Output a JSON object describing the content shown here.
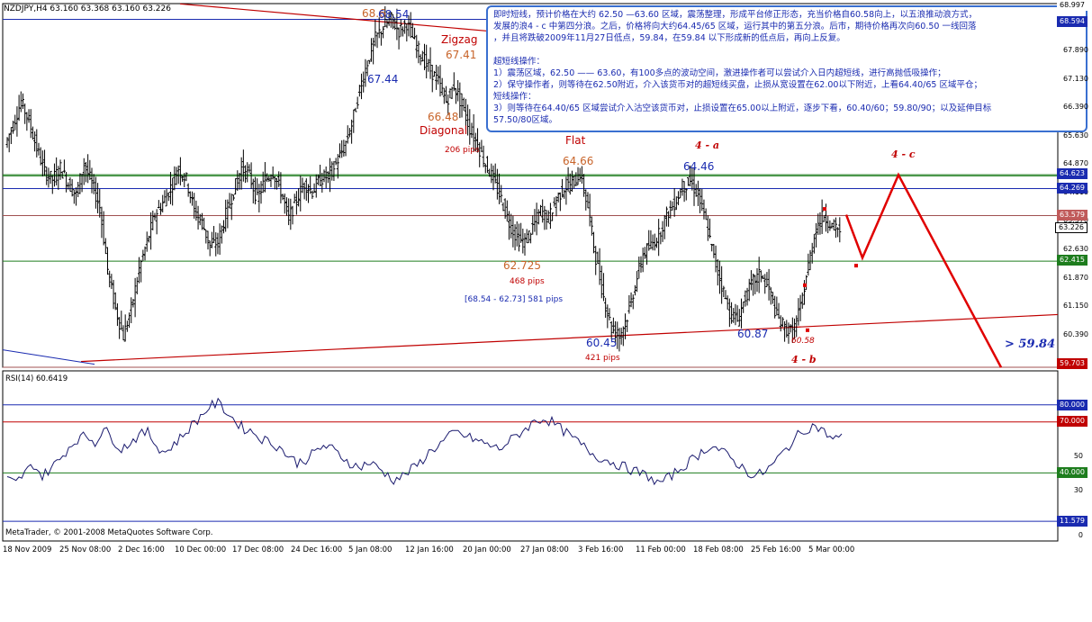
{
  "header": {
    "symbol_line": "NZDJPY,H4  63.160 63.368 63.160 63.226"
  },
  "annotation_box": {
    "lines": [
      "即时短线，预计价格在大约 62.50 —63.60 区域，震荡整理，形成平台修正形态，充当价格自60.58向上，以五浪推动浪方式，",
      "发展的浪4 - c 中第四分浪。之后，价格将向大约64.45/65 区域，运行其中的第五分浪。后市，期待价格再次向60.50 一线回落",
      "，并且将跌破2009年11月27日低点，59.84，在59.84 以下形成新的低点后，再向上反复。",
      "",
      "超短线操作：",
      "1）震荡区域，62.50 —— 63.60，有100多点的波动空间，激进操作者可以尝试介入日内超短线，进行高抛低吸操作；",
      "2）保守操作者，则等待在62.50附近，介入该货币对的超短线买盘，止损从宽设置在62.00以下附近，上看64.40/65 区域平仓；",
      "短线操作：",
      "3）则等待在64.40/65 区域尝试介入沽空该货币对，止损设置在65.00以上附近，逐步下看，60.40/60；59.80/90；以及延伸目标",
      "57.50/80区域。"
    ]
  },
  "wave_labels": {
    "top_a": "68.6",
    "top_b": "68.54",
    "zigzag": "Zigzag",
    "v6741": "67.41",
    "v6744": "67.44",
    "v6648": "66.48",
    "diagonal": "Diagonal",
    "pips206": "206   pips",
    "flat": "Flat",
    "v6466": "64.66",
    "v6446": "64.46",
    "w4a": "4 - a",
    "w4c": "4 - c",
    "v62725": "62.725",
    "pips468": "468    pips",
    "range": "[68.54 - 62.73]    581    pips",
    "v6045": "60.45",
    "pips421": "421   pips",
    "v6087": "60.87",
    "v6058": "60.58",
    "w4b": "4 - b",
    "target": "> 59.84"
  },
  "price_axis": {
    "ticks": [
      "67.890",
      "67.130",
      "66.390",
      "65.630",
      "64.870",
      "64.110",
      "63.370",
      "62.630",
      "61.870",
      "61.150",
      "60.390"
    ],
    "tags": [
      {
        "text": "68.997",
        "color": "#ffffff",
        "bg": "#ffffff",
        "fg": "#000000"
      },
      {
        "text": "68.594",
        "color": "#1a2bb0",
        "bg": "#1a2bb0",
        "fg": "#ffffff"
      },
      {
        "text": "64.623",
        "color": "#1a2bb0",
        "bg": "#1a2bb0",
        "fg": "#ffffff"
      },
      {
        "text": "64.269",
        "color": "#1a2bb0",
        "bg": "#1a2bb0",
        "fg": "#ffffff"
      },
      {
        "text": "63.579",
        "color": "#b05050",
        "bg": "#c05a5a",
        "fg": "#ffffff"
      },
      {
        "text": "63.226",
        "color": "#000000",
        "bg": "#ffffff",
        "fg": "#000000"
      },
      {
        "text": "62.415",
        "color": "#1e7d1e",
        "bg": "#1e7d1e",
        "fg": "#ffffff"
      },
      {
        "text": "59.703",
        "color": "#c00000",
        "bg": "#c00000",
        "fg": "#ffffff"
      }
    ]
  },
  "rsi_panel": {
    "label": "RSI(14) 60.6419",
    "ticks": [
      "50",
      "30",
      "0"
    ],
    "tags": [
      {
        "text": "80.000",
        "bg": "#1a2bb0"
      },
      {
        "text": "70.000",
        "bg": "#c00000"
      },
      {
        "text": "40.000",
        "bg": "#1e7d1e"
      },
      {
        "text": "11.579",
        "bg": "#1a2bb0"
      }
    ]
  },
  "footer": {
    "copyright": "MetaTrader, © 2001-2008 MetaQuotes Software Corp."
  },
  "date_axis": [
    "18 Nov 2009",
    "25 Nov 08:00",
    "2 Dec 16:00",
    "10 Dec 00:00",
    "17 Dec 08:00",
    "24 Dec 16:00",
    "5 Jan 08:00",
    "12 Jan 16:00",
    "20 Jan 00:00",
    "27 Jan 08:00",
    "3 Feb 16:00",
    "11 Feb 00:00",
    "18 Feb 08:00",
    "25 Feb 16:00",
    "5 Mar 00:00"
  ],
  "chart_data": {
    "type": "line",
    "series": [
      {
        "values": [
          65.4,
          65.9,
          66.5,
          66.0,
          65.3,
          64.7,
          64.5,
          64.8,
          64.4,
          64.1,
          64.9,
          64.4,
          63.8,
          62.2,
          61.2,
          60.5,
          61.2,
          62.2,
          62.9,
          63.6,
          63.9,
          64.3,
          64.8,
          64.5,
          63.7,
          63.4,
          62.8,
          62.9,
          63.6,
          64.2,
          64.8,
          64.6,
          64.0,
          64.5,
          64.7,
          64.2,
          63.5,
          64.0,
          64.4,
          64.2,
          64.5,
          64.6,
          64.9,
          65.3,
          65.9,
          66.8,
          67.5,
          68.1,
          68.4,
          68.6,
          68.3,
          68.5,
          68.0,
          67.6,
          67.3,
          67.0,
          66.5,
          66.9,
          66.4,
          65.8,
          65.4,
          64.9,
          64.5,
          64.0,
          63.4,
          63.0,
          62.9,
          63.3,
          63.7,
          63.5,
          64.0,
          64.3,
          64.4,
          64.66,
          63.8,
          62.5,
          61.5,
          60.7,
          60.5,
          61.0,
          61.8,
          62.6,
          62.8,
          63.1,
          63.6,
          63.9,
          64.3,
          64.46,
          64.1,
          63.4,
          62.5,
          61.8,
          61.1,
          60.9,
          61.5,
          61.9,
          62.1,
          61.7,
          61.0,
          60.7,
          60.58,
          61.2,
          62.3,
          63.3,
          63.6,
          63.3,
          63.2
        ],
        "period": "H4"
      }
    ],
    "rsi": [
      36,
      34,
      40,
      45,
      38,
      43,
      48,
      55,
      60,
      62,
      58,
      66,
      60,
      54,
      58,
      62,
      64,
      56,
      52,
      57,
      62,
      68,
      73,
      79,
      81,
      76,
      70,
      66,
      64,
      60,
      58,
      55,
      50,
      46,
      48,
      52,
      56,
      54,
      50,
      46,
      43,
      46,
      44,
      40,
      36,
      38,
      42,
      46,
      52,
      56,
      60,
      64,
      62,
      60,
      58,
      56,
      54,
      58,
      62,
      66,
      70,
      72,
      70,
      66,
      62,
      58,
      54,
      50,
      48,
      46,
      44,
      42,
      40,
      38,
      34,
      36,
      40,
      44,
      48,
      52,
      56,
      54,
      50,
      46,
      42,
      38,
      40,
      44,
      50,
      56,
      62,
      66,
      68,
      64,
      60,
      60.64
    ],
    "rsi_levels": [
      80,
      70,
      40
    ],
    "ylim": [
      59.703,
      68.997
    ]
  },
  "colors": {
    "bars": "#000000",
    "trendline": "#c00000",
    "blue_line": "#1a2bb0",
    "green_line": "#1e7d1e",
    "brown_line": "#a05050",
    "projection": "#e00000",
    "annot_border": "#3a6fd0"
  }
}
